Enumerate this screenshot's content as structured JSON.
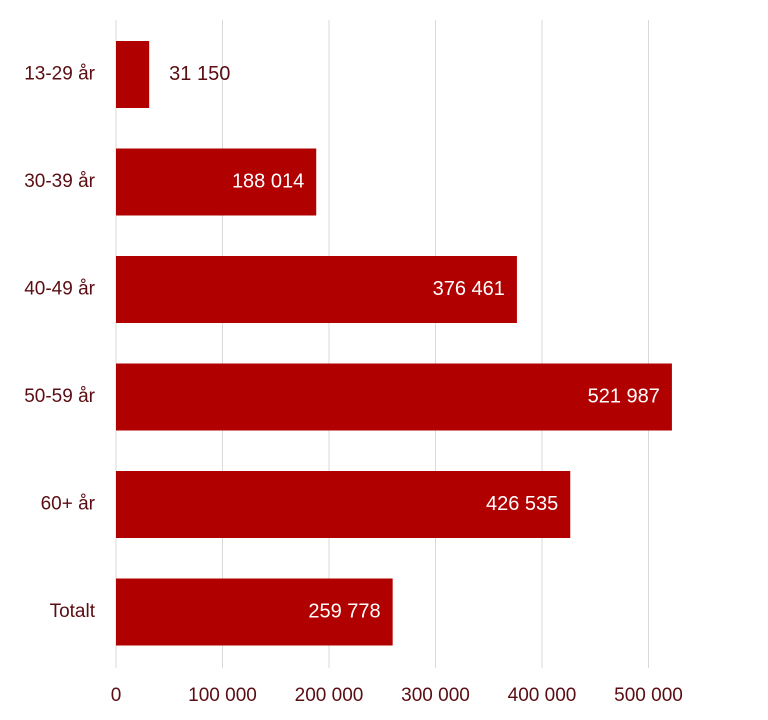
{
  "chart_data": {
    "type": "bar",
    "orientation": "horizontal",
    "categories": [
      "13-29 år",
      "30-39 år",
      "40-49 år",
      "50-59 år",
      "60+ år",
      "Totalt"
    ],
    "values": [
      31150,
      188014,
      376461,
      521987,
      426535,
      259778
    ],
    "value_labels": [
      "31 150",
      "188 014",
      "376 461",
      "521 987",
      "426 535",
      "259 778"
    ],
    "x_ticks": [
      0,
      100000,
      200000,
      300000,
      400000,
      500000
    ],
    "x_tick_labels": [
      "0",
      "100 000",
      "200 000",
      "300 000",
      "400 000",
      "500 000"
    ],
    "xlim": [
      0,
      600000
    ],
    "title": "",
    "xlabel": "",
    "ylabel": "",
    "grid": "vertical",
    "legend": "none",
    "colors": {
      "bar": "#b00000",
      "text": "#5a0d12",
      "grid": "#d9d9d9"
    }
  }
}
